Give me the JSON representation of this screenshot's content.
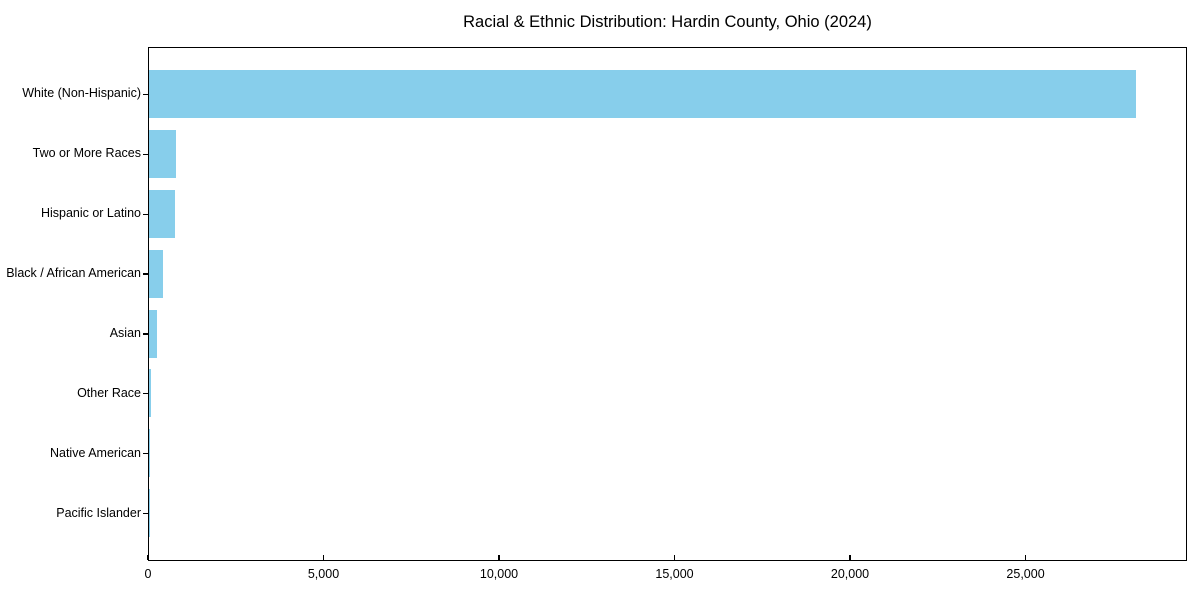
{
  "chart_data": {
    "type": "bar",
    "orientation": "horizontal",
    "title": "Racial & Ethnic Distribution: Hardin County, Ohio (2024)",
    "categories": [
      "White (Non-Hispanic)",
      "Two or More Races",
      "Hispanic or Latino",
      "Black / African American",
      "Asian",
      "Other Race",
      "Native American",
      "Pacific Islander"
    ],
    "values": [
      28200,
      780,
      750,
      390,
      240,
      55,
      30,
      10
    ],
    "xlabel": "",
    "ylabel": "",
    "xlim": [
      0,
      29600
    ],
    "xticks": [
      0,
      5000,
      10000,
      15000,
      20000,
      25000
    ],
    "xtick_labels": [
      "0",
      "5,000",
      "10,000",
      "15,000",
      "20,000",
      "25,000"
    ],
    "bar_color": "#87CEEB",
    "spine_color": "#000000",
    "grid": false,
    "legend": null
  }
}
